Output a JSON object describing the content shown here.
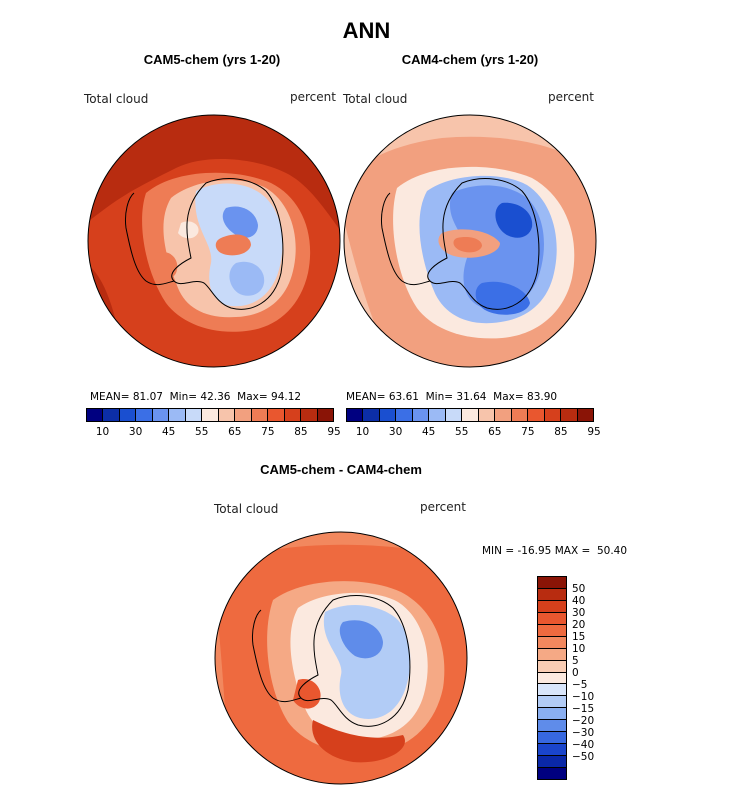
{
  "title": "ANN",
  "panels": [
    {
      "name": "cam5",
      "title": "CAM5-chem (yrs 1-20)",
      "field_label": "Total cloud",
      "units_label": "percent",
      "mean_label": "MEAN=",
      "mean": "81.07",
      "min_label": "Min=",
      "min": "42.36",
      "max_label": "Max=",
      "max": "94.12"
    },
    {
      "name": "cam4",
      "title": "CAM4-chem (yrs 1-20)",
      "field_label": "Total cloud",
      "units_label": "percent",
      "mean_label": "MEAN=",
      "mean": "63.61",
      "min_label": "Min=",
      "min": "31.64",
      "max_label": "Max=",
      "max": "83.90"
    }
  ],
  "diff_panel": {
    "title": "CAM5-chem - CAM4-chem",
    "field_label": "Total cloud",
    "units_label": "percent",
    "min_label": "MIN =",
    "min": "-16.95",
    "max_label": "MAX =",
    "max": "50.40"
  },
  "colorbar_abs": {
    "colors": [
      "#000080",
      "#0c2ea6",
      "#1a4fd0",
      "#3b6fe6",
      "#6a93ef",
      "#9bbaf5",
      "#c8daf9",
      "#fbe9df",
      "#f7c4ab",
      "#f2a07f",
      "#ee7c55",
      "#e9572f",
      "#d6401c",
      "#b82c10",
      "#8a1406"
    ],
    "tick_labels": [
      "10",
      "30",
      "45",
      "55",
      "65",
      "75",
      "85",
      "95"
    ]
  },
  "colorbar_diff": {
    "colors_top_to_bottom": [
      "#8a1406",
      "#b82c10",
      "#d6401c",
      "#e9572f",
      "#ee6a3f",
      "#f2885e",
      "#f5a985",
      "#f9cdb4",
      "#fbe9df",
      "#d8e5fa",
      "#b2ccf6",
      "#8aaff1",
      "#5f8cea",
      "#3768e0",
      "#1a45cb",
      "#0a28a8",
      "#000080"
    ],
    "tick_labels": [
      "50",
      "40",
      "30",
      "20",
      "15",
      "10",
      "5",
      "0",
      "−5",
      "−10",
      "−15",
      "−20",
      "−30",
      "−40",
      "−50"
    ]
  },
  "chart_data": [
    {
      "type": "heatmap",
      "title": "CAM5-chem (yrs 1-20)",
      "variable": "Total cloud",
      "units": "percent",
      "projection": "south polar stereographic",
      "mean": 81.07,
      "min": 42.36,
      "max": 94.12,
      "levels": [
        10,
        20,
        30,
        40,
        45,
        50,
        55,
        60,
        65,
        70,
        75,
        80,
        85,
        90,
        95
      ]
    },
    {
      "type": "heatmap",
      "title": "CAM4-chem (yrs 1-20)",
      "variable": "Total cloud",
      "units": "percent",
      "projection": "south polar stereographic",
      "mean": 63.61,
      "min": 31.64,
      "max": 83.9,
      "levels": [
        10,
        20,
        30,
        40,
        45,
        50,
        55,
        60,
        65,
        70,
        75,
        80,
        85,
        90,
        95
      ]
    },
    {
      "type": "heatmap",
      "title": "CAM5-chem - CAM4-chem",
      "variable": "Total cloud",
      "units": "percent",
      "projection": "south polar stereographic",
      "min": -16.95,
      "max": 50.4,
      "levels": [
        -50,
        -40,
        -30,
        -20,
        -15,
        -10,
        -5,
        0,
        5,
        10,
        15,
        20,
        30,
        40,
        50
      ]
    }
  ]
}
